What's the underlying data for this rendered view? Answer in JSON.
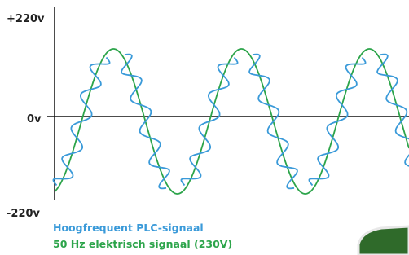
{
  "axis": {
    "top": "+220v",
    "middle": "0v",
    "bottom": "-220v"
  },
  "legend": {
    "plc": "Hoogfrequent PLC-signaal",
    "mains": "50 Hz elektrisch signaal (230V)"
  }
}
